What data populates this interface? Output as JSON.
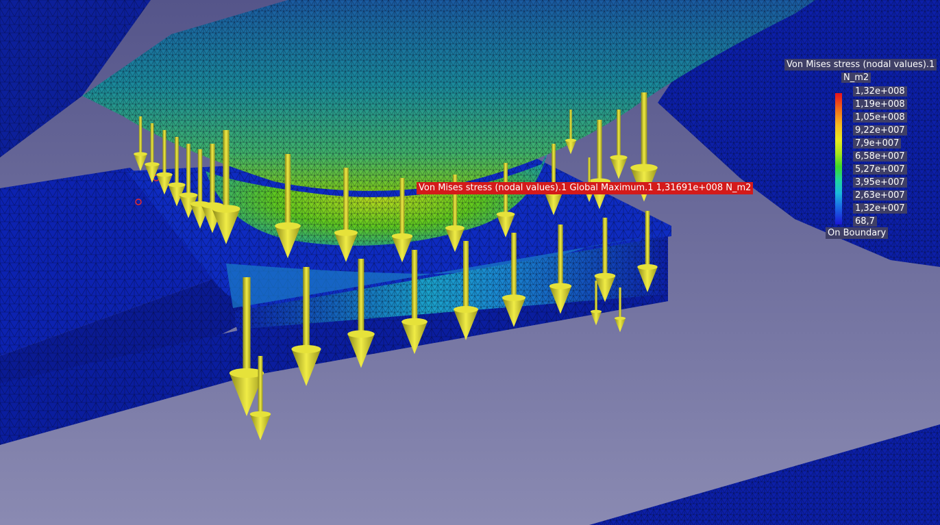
{
  "viewport": {
    "scene": "fem-stress-mesh",
    "colors": {
      "background_top": "#6e6ea8",
      "background_bottom": "#8c8cb4",
      "low_stress": "#0c1fa8",
      "mid_stress": "#48c81e",
      "high_stress": "#e8ea1e",
      "load_arrow": "#d8d42a",
      "max_label_bg": "#d41a1a"
    }
  },
  "legend": {
    "title": "Von Mises stress (nodal values).1",
    "unit": "N_m2",
    "values": [
      "1,32e+008",
      "1,19e+008",
      "1,05e+008",
      "9,22e+007",
      "7,9e+007",
      "6,58e+007",
      "5,27e+007",
      "3,95e+007",
      "2,63e+007",
      "1,32e+007",
      "68,7"
    ],
    "footer": "On Boundary"
  },
  "max_label": {
    "text": "Von Mises stress (nodal values).1  Global Maximum.1  1,31691e+008 N_m2"
  }
}
